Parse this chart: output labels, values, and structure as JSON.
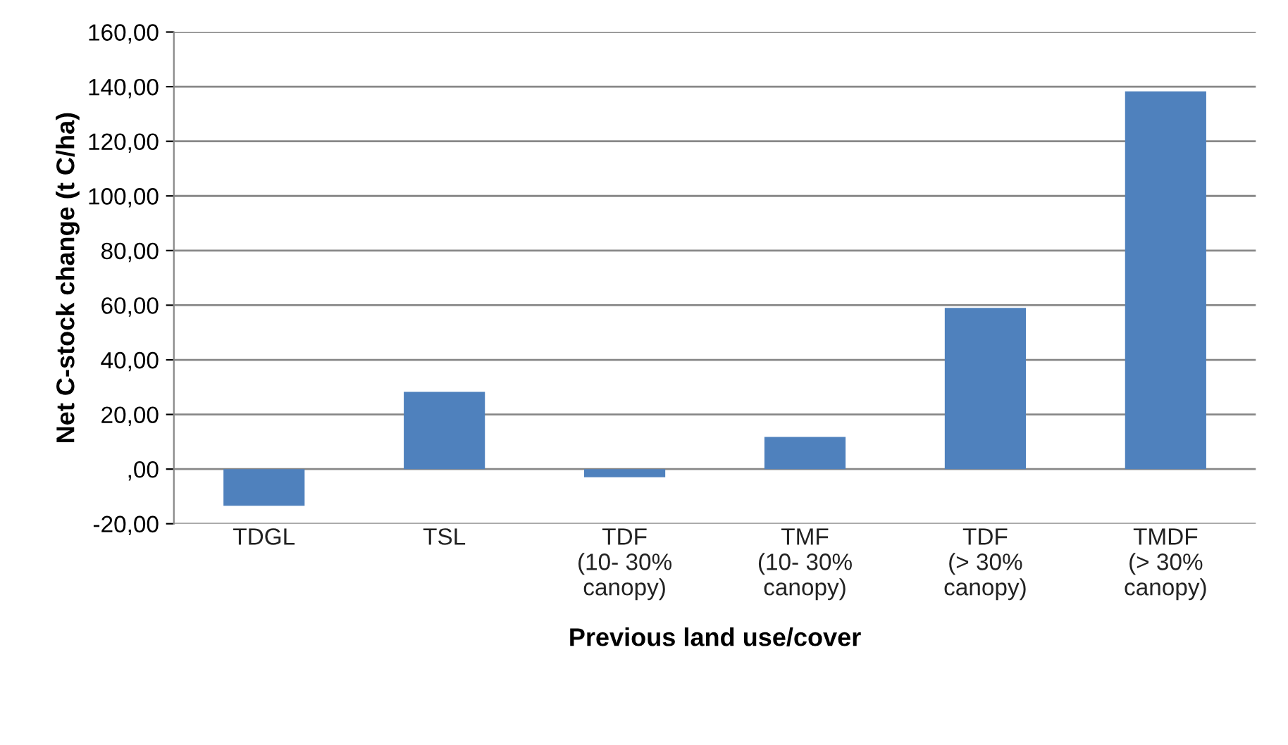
{
  "chart_data": {
    "type": "bar",
    "xlabel": "Previous land use/cover",
    "ylabel": "Net C-stock change (t C/ha)",
    "categories": [
      "TDGL",
      "TSL",
      "TDF\n(10- 30%\ncanopy)",
      "TMF\n(10- 30%\ncanopy)",
      "TDF\n(> 30%\ncanopy)",
      "TMDF\n(> 30%\ncanopy)"
    ],
    "values": [
      -13.4,
      28.3,
      -3,
      11.8,
      59,
      138.3
    ],
    "color": "#4f81bd",
    "ylim": [
      -20,
      160
    ],
    "yticks": [
      {
        "value": -20,
        "label": "-20,00"
      },
      {
        "value": 0,
        "label": ",00"
      },
      {
        "value": 20,
        "label": "20,00"
      },
      {
        "value": 40,
        "label": "40,00"
      },
      {
        "value": 60,
        "label": "60,00"
      },
      {
        "value": 80,
        "label": "80,00"
      },
      {
        "value": 100,
        "label": "100,00"
      },
      {
        "value": 120,
        "label": "120,00"
      },
      {
        "value": 140,
        "label": "140,00"
      },
      {
        "value": 160,
        "label": "160,00"
      }
    ],
    "grid": "y",
    "legend": false
  }
}
